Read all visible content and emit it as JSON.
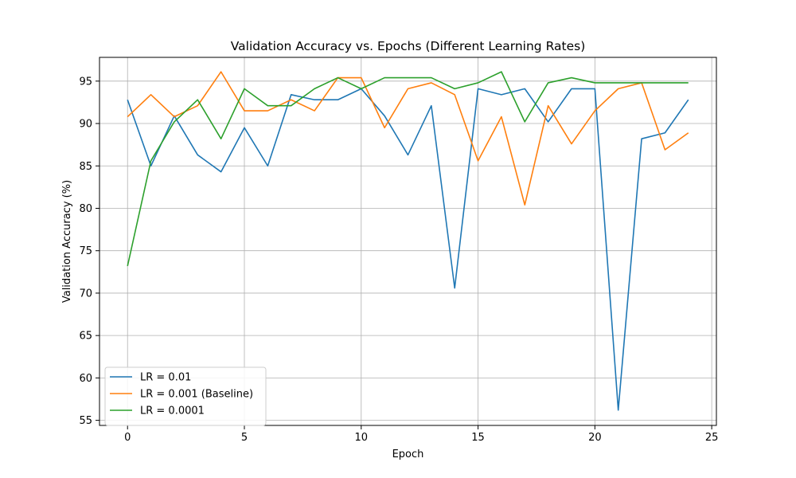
{
  "chart_data": {
    "type": "line",
    "title": "Validation Accuracy vs. Epochs (Different Learning Rates)",
    "xlabel": "Epoch",
    "ylabel": "Validation Accuracy (%)",
    "xlim": [
      -1.2,
      25.2
    ],
    "ylim": [
      54.4,
      97.8
    ],
    "xticks": [
      0,
      5,
      10,
      15,
      20,
      25
    ],
    "yticks": [
      55,
      60,
      65,
      70,
      75,
      80,
      85,
      90,
      95
    ],
    "grid": true,
    "legend_position": "lower-left",
    "x": [
      0,
      1,
      2,
      3,
      4,
      5,
      6,
      7,
      8,
      9,
      10,
      11,
      12,
      13,
      14,
      15,
      16,
      17,
      18,
      19,
      20,
      21,
      22,
      23,
      24
    ],
    "series": [
      {
        "name": "LR = 0.01",
        "color": "#1f77b4",
        "values": [
          92.8,
          85.0,
          90.9,
          86.3,
          84.3,
          89.5,
          85.0,
          93.4,
          92.8,
          92.8,
          94.1,
          90.9,
          86.3,
          92.1,
          70.6,
          94.1,
          93.4,
          94.1,
          90.2,
          94.1,
          94.1,
          56.2,
          88.2,
          88.9,
          92.8
        ]
      },
      {
        "name": "LR = 0.001 (Baseline)",
        "color": "#ff7f0e",
        "values": [
          90.8,
          93.4,
          90.8,
          92.1,
          96.1,
          91.5,
          91.5,
          92.8,
          91.5,
          95.4,
          95.4,
          89.5,
          94.1,
          94.8,
          93.4,
          85.6,
          90.8,
          80.4,
          92.1,
          87.6,
          91.5,
          94.1,
          94.8,
          86.9,
          88.9
        ]
      },
      {
        "name": "LR = 0.0001",
        "color": "#2ca02c",
        "values": [
          73.2,
          85.6,
          90.2,
          92.8,
          88.2,
          94.1,
          92.1,
          92.1,
          94.1,
          95.4,
          94.1,
          95.4,
          95.4,
          95.4,
          94.1,
          94.8,
          96.1,
          90.2,
          94.8,
          95.4,
          94.8,
          94.8,
          94.8,
          94.8,
          94.8
        ]
      }
    ]
  }
}
